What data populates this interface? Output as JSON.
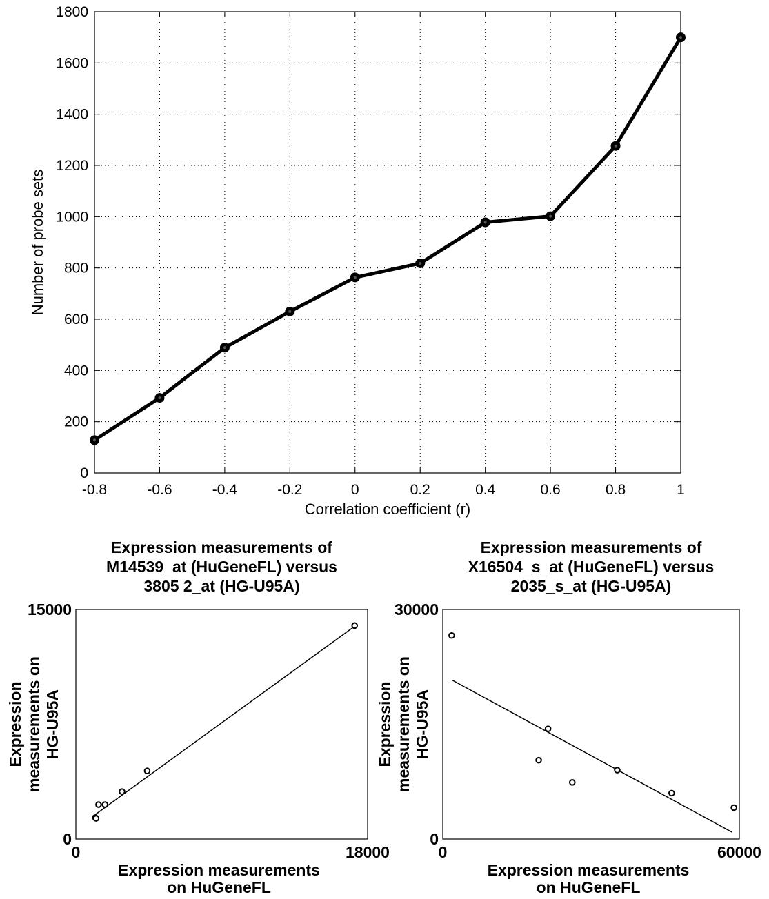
{
  "chart_data": [
    {
      "type": "line",
      "title": "",
      "xlabel": "Correlation coefficient (r)",
      "ylabel": "Number of probe sets",
      "xlim": [
        -0.8,
        1
      ],
      "ylim": [
        0,
        1800
      ],
      "xticks": [
        "-0.8",
        "-0.6",
        "-0.4",
        "-0.2",
        "0",
        "0.2",
        "0.4",
        "0.6",
        "0.8",
        "1"
      ],
      "yticks": [
        "0",
        "200",
        "400",
        "600",
        "800",
        "1000",
        "1200",
        "1400",
        "1600",
        "1800"
      ],
      "grid": true,
      "line_color": "#000000",
      "x": [
        -0.8,
        -0.6,
        -0.4,
        -0.2,
        0,
        0.2,
        0.4,
        0.6,
        0.8,
        1
      ],
      "y": [
        128,
        293,
        489,
        630,
        763,
        818,
        978,
        1002,
        1276,
        1700
      ]
    },
    {
      "type": "scatter",
      "title_lines": [
        "Expression measurements of",
        "M14539_at (HuGeneFL) versus",
        "3805 2_at (HG-U95A)"
      ],
      "xlabel_lines": [
        "Expression measurements",
        "on HuGeneFL"
      ],
      "ylabel_lines": [
        "Expression",
        "measurements on",
        "HG-U95A"
      ],
      "xlim": [
        0,
        18000
      ],
      "ylim": [
        0,
        15000
      ],
      "xtick_labels": [
        "0",
        "18000"
      ],
      "ytick_labels": [
        "0",
        "15000"
      ],
      "points": [
        {
          "x": 1200,
          "y": 1400
        },
        {
          "x": 1250,
          "y": 1350
        },
        {
          "x": 1400,
          "y": 2250
        },
        {
          "x": 1800,
          "y": 2250
        },
        {
          "x": 2850,
          "y": 3100
        },
        {
          "x": 4400,
          "y": 4450
        },
        {
          "x": 17200,
          "y": 13950
        }
      ],
      "fit_line": {
        "x": [
          1200,
          17200
        ],
        "y": [
          1600,
          13900
        ]
      }
    },
    {
      "type": "scatter",
      "title_lines": [
        "Expression measurements of",
        "X16504_s_at (HuGeneFL) versus",
        "2035_s_at (HG-U95A)"
      ],
      "xlabel_lines": [
        "Expression measurements",
        "on HuGeneFL"
      ],
      "ylabel_lines": [
        "Expression",
        "measurements on",
        "HG-U95A"
      ],
      "xlim": [
        0,
        60000
      ],
      "ylim": [
        0,
        30000
      ],
      "xtick_labels": [
        "0",
        "60000"
      ],
      "ytick_labels": [
        "0",
        "30000"
      ],
      "points": [
        {
          "x": 1800,
          "y": 26600
        },
        {
          "x": 21300,
          "y": 14400
        },
        {
          "x": 19400,
          "y": 10300
        },
        {
          "x": 26200,
          "y": 7400
        },
        {
          "x": 35300,
          "y": 9000
        },
        {
          "x": 46300,
          "y": 6000
        },
        {
          "x": 58900,
          "y": 4100
        }
      ],
      "fit_line": {
        "x": [
          1800,
          58500
        ],
        "y": [
          20800,
          900
        ]
      }
    }
  ]
}
